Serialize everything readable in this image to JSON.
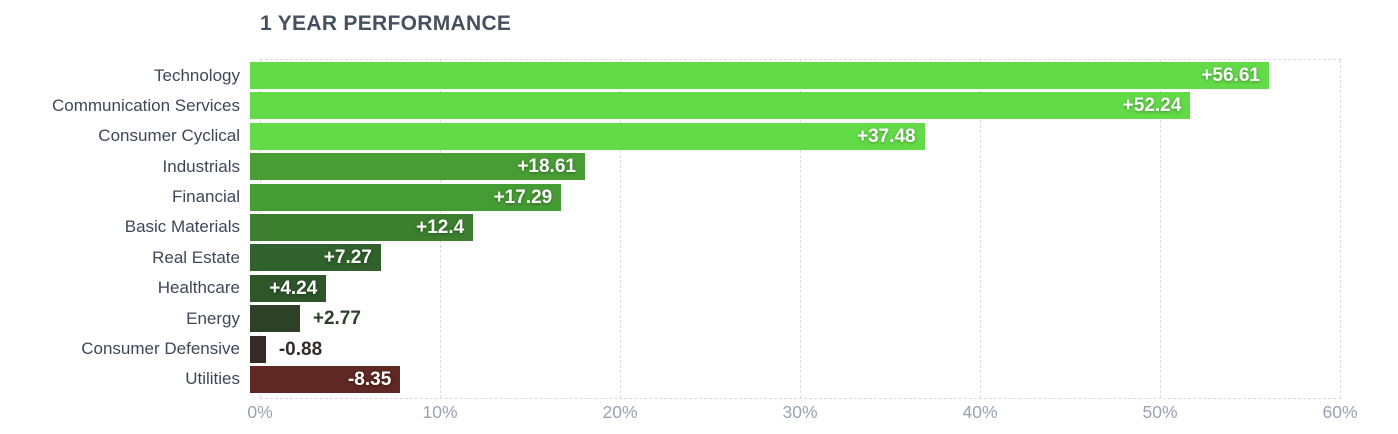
{
  "chart_data": {
    "type": "bar",
    "orientation": "horizontal",
    "title": "1 YEAR PERFORMANCE",
    "categories": [
      "Technology",
      "Communication Services",
      "Consumer Cyclical",
      "Industrials",
      "Financial",
      "Basic Materials",
      "Real Estate",
      "Healthcare",
      "Energy",
      "Consumer Defensive",
      "Utilities"
    ],
    "values": [
      56.61,
      52.24,
      37.48,
      18.61,
      17.29,
      12.4,
      7.27,
      4.24,
      2.77,
      -0.88,
      -8.35
    ],
    "value_labels": [
      "+56.61",
      "+52.24",
      "+37.48",
      "+18.61",
      "+17.29",
      "+12.4",
      "+7.27",
      "+4.24",
      "+2.77",
      "-0.88",
      "-8.35"
    ],
    "bar_colors": [
      "#63da48",
      "#63da48",
      "#63da48",
      "#489e34",
      "#469c34",
      "#3b7f2f",
      "#31612c",
      "#2e5629",
      "#2c4128",
      "#342b28",
      "#5f2825"
    ],
    "label_inside": [
      true,
      true,
      true,
      true,
      true,
      true,
      true,
      true,
      false,
      false,
      true
    ],
    "outside_label_colors": [
      null,
      null,
      null,
      null,
      null,
      null,
      null,
      null,
      "#2c4128",
      "#342b28",
      null
    ],
    "x_ticks": [
      "0%",
      "10%",
      "20%",
      "30%",
      "40%",
      "50%",
      "60%"
    ],
    "x_tick_values": [
      0,
      10,
      20,
      30,
      40,
      50,
      60
    ],
    "xlim": [
      0,
      60
    ],
    "xlabel": "",
    "ylabel": "",
    "grid": "dashed vertical gridlines, dashed top and bottom borders",
    "legend": "none",
    "colors": {
      "background": "#ffffff",
      "title_text": "#47505f",
      "category_text": "#3d4857",
      "axis_text": "#9aa2b0",
      "gridline": "#d9dbdf",
      "value_label_inside": "#ffffff"
    }
  }
}
